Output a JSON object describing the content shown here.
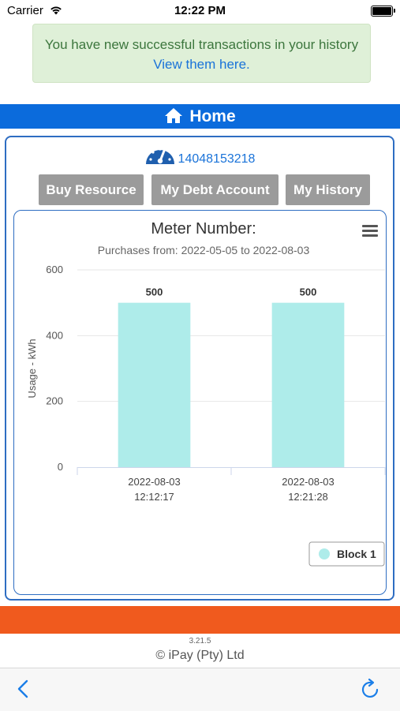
{
  "status_bar": {
    "carrier": "Carrier",
    "time": "12:22 PM"
  },
  "alert": {
    "message": "You have new successful transactions in your history",
    "link": "View them here."
  },
  "header": {
    "title": "Home",
    "icon": "home-icon"
  },
  "meter": {
    "number": "14048153218",
    "icon": "gauge-icon"
  },
  "buttons": {
    "buy": "Buy Resource",
    "debt": "My Debt Account",
    "history": "My History"
  },
  "footer": {
    "version": "3.21.5",
    "copyright": "© iPay (Pty) Ltd"
  },
  "colors": {
    "accent": "#0b6bdc",
    "bar": "#aeecea",
    "orange": "#f05a1e",
    "alert_bg": "#dff0d8",
    "button": "#9b9b9b"
  },
  "chart_data": {
    "type": "bar",
    "title": "Meter Number:",
    "subtitle": "Purchases from: 2022-05-05 to 2022-08-03",
    "ylabel": "Usage - kWh",
    "xlabel": "",
    "categories": [
      [
        "2022-08-03",
        "12:12:17"
      ],
      [
        "2022-08-03",
        "12:21:28"
      ]
    ],
    "series": [
      {
        "name": "Block 1",
        "values": [
          500,
          500
        ]
      }
    ],
    "ylim": [
      0,
      600
    ],
    "yticks": [
      0,
      200,
      400,
      600
    ],
    "grid": true,
    "legend": "bottom-right",
    "data_labels": true
  }
}
